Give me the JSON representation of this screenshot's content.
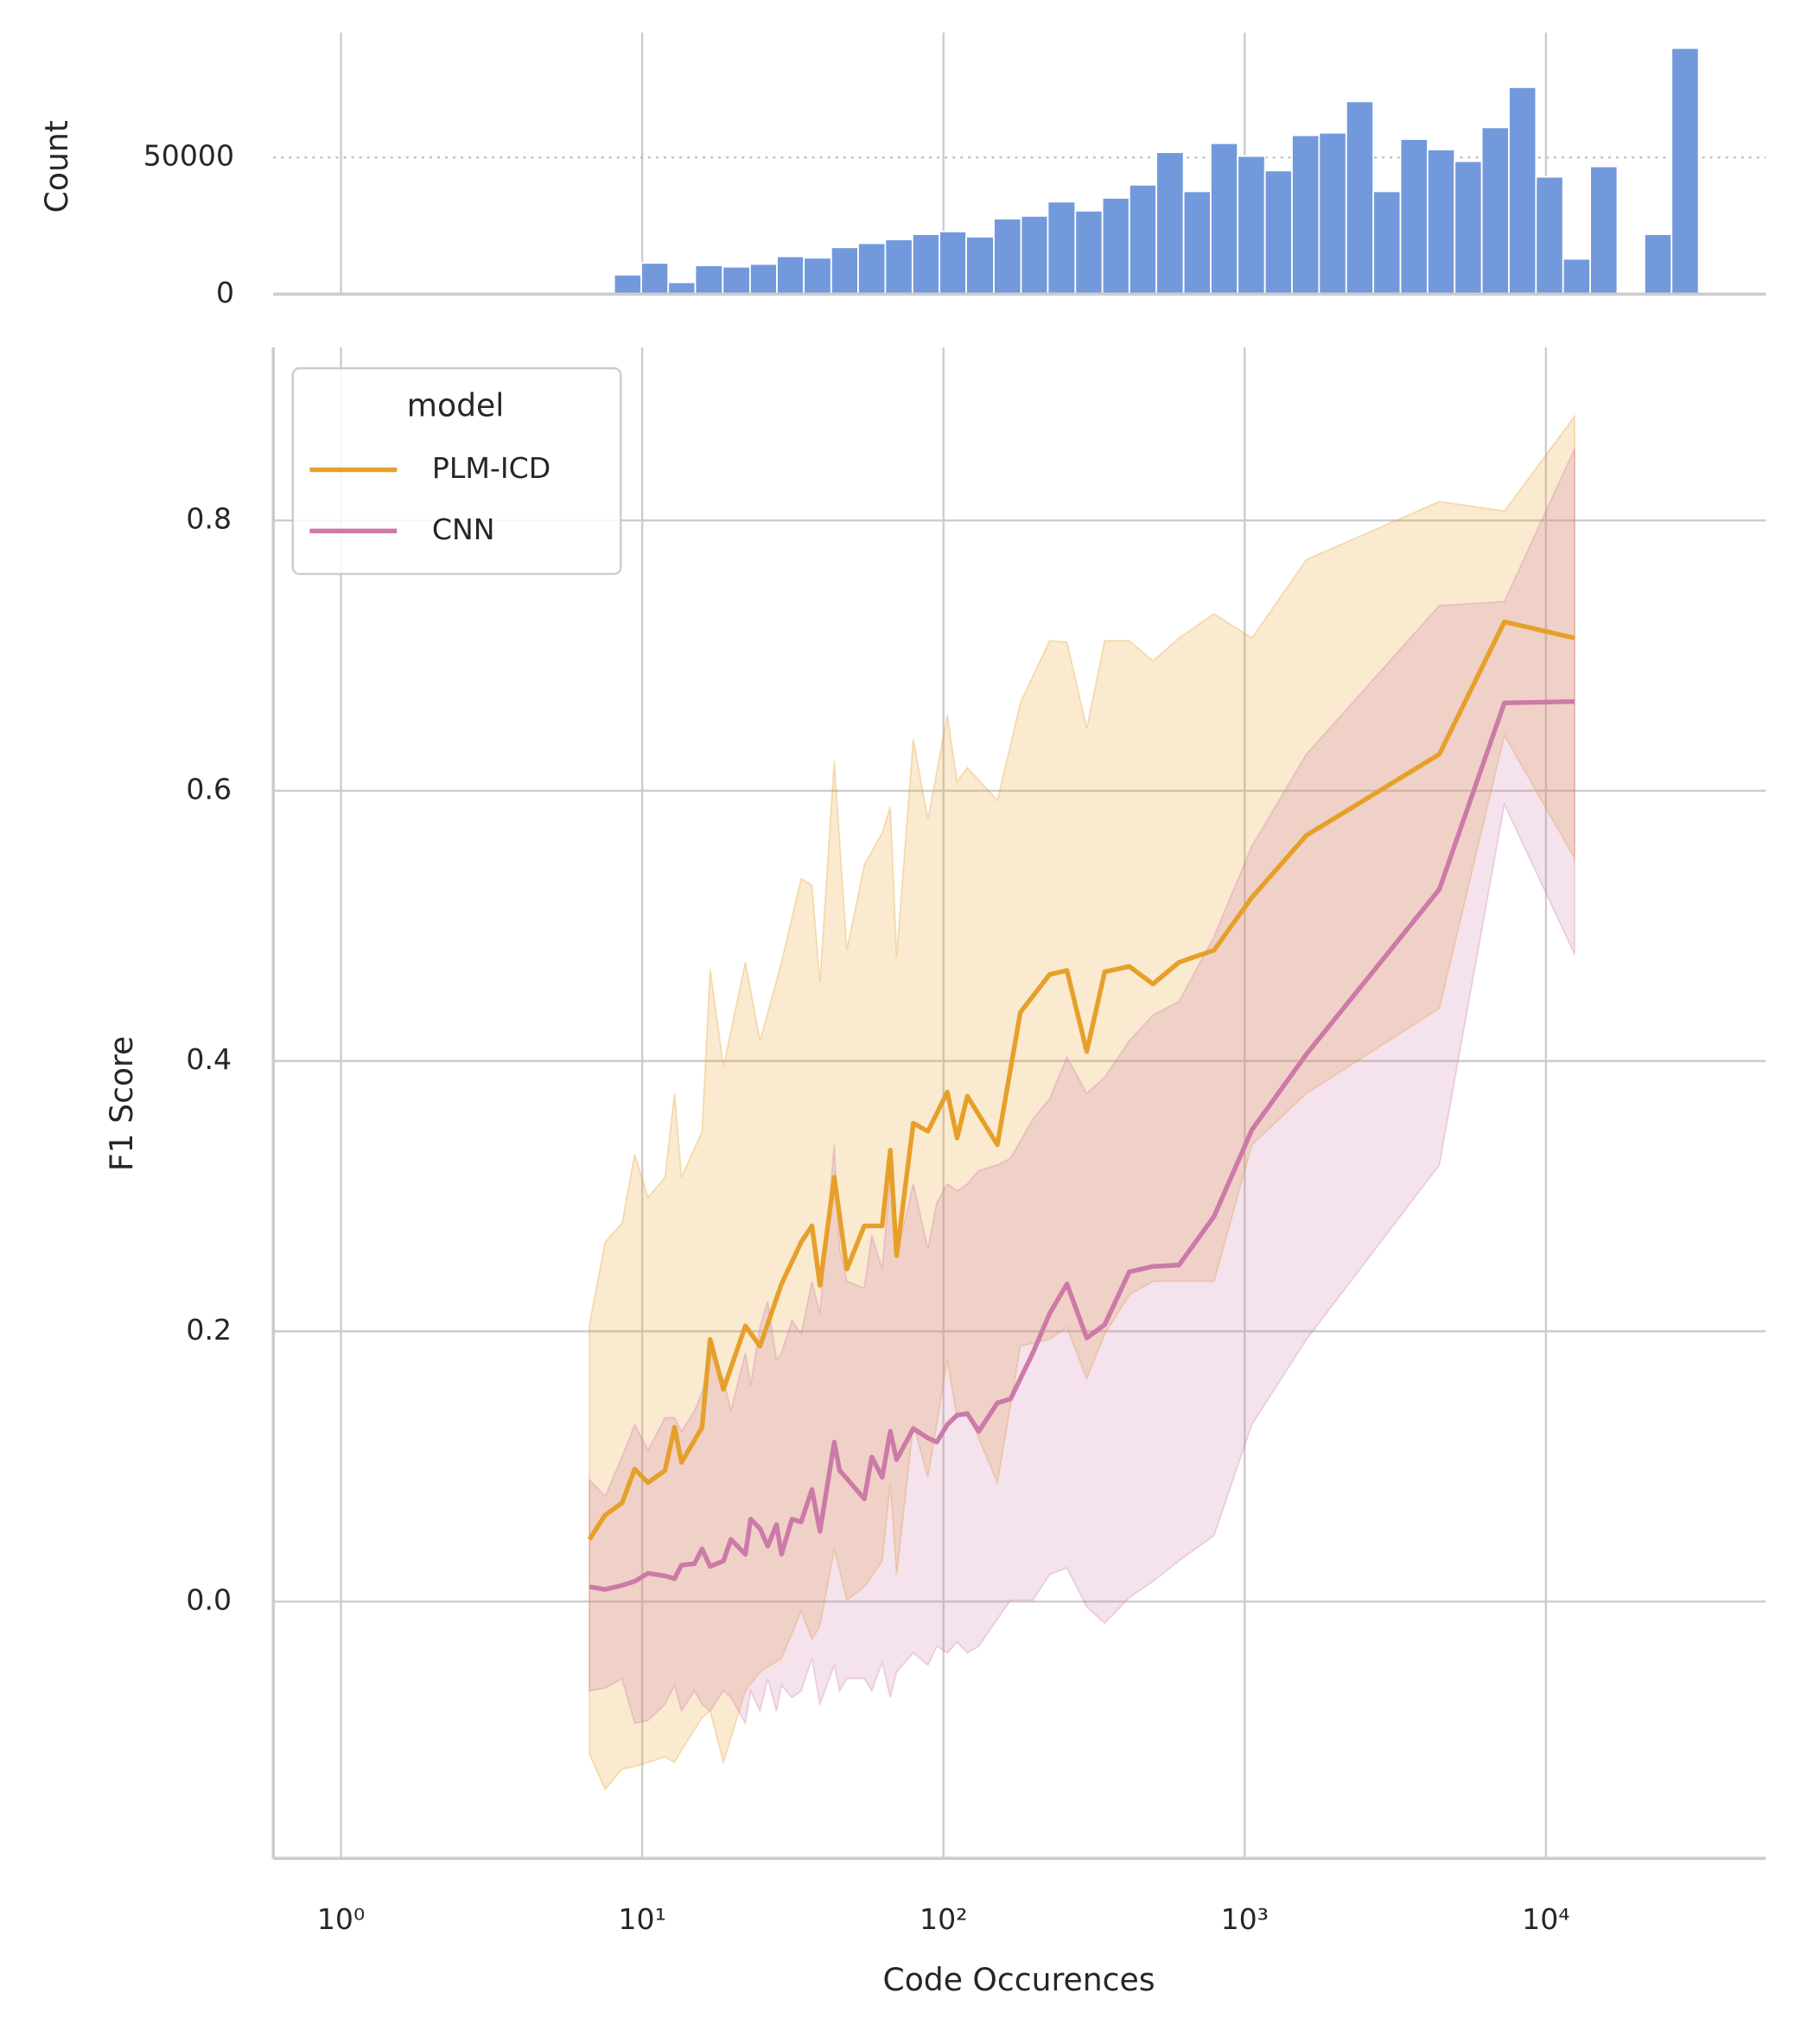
{
  "chart_data": [
    {
      "type": "histogram",
      "ylabel": "Count",
      "color": "#7399dd",
      "log_x": true,
      "grid": true,
      "xlim": [
        0.596,
        53700
      ],
      "xticks": [
        1,
        10,
        100,
        1000,
        10000
      ],
      "ylim": [
        0,
        95700
      ],
      "yticks": [
        0,
        50000
      ],
      "bins": [
        8.07,
        9.93,
        12.2,
        15.0,
        18.5,
        22.8,
        28.0,
        34.4,
        42.4,
        52.1,
        64.1,
        78.9,
        97.0,
        119,
        147,
        181,
        222,
        274,
        337,
        414,
        509,
        627,
        771,
        948,
        1167,
        1435,
        1766,
        2173,
        2673,
        3289,
        4046,
        4977,
        6124,
        7534,
        9268,
        11402,
        14028,
        17258,
        21232,
        26122,
        32137
      ],
      "counts": [
        7100,
        11400,
        4300,
        10500,
        10000,
        11000,
        13800,
        13300,
        17100,
        18600,
        20000,
        21900,
        22900,
        21000,
        27600,
        28600,
        33800,
        30500,
        35200,
        40000,
        51900,
        37600,
        55200,
        50500,
        45200,
        58100,
        59000,
        70500,
        37600,
        56700,
        52900,
        48600,
        61000,
        75700,
        42900,
        12900,
        46700,
        0,
        21900,
        90000
      ]
    },
    {
      "type": "line",
      "xlabel": "Code Occurences",
      "ylabel": "F1 Score",
      "log_x": true,
      "grid": true,
      "legend_title": "model",
      "legend_position": "upper left",
      "xlim": [
        0.596,
        53700
      ],
      "xticks": [
        {
          "value": 1,
          "label": "10⁰"
        },
        {
          "value": 10,
          "label": "10¹"
        },
        {
          "value": 100,
          "label": "10²"
        },
        {
          "value": 1000,
          "label": "10³"
        },
        {
          "value": 10000,
          "label": "10⁴"
        }
      ],
      "ylim": [
        -0.19,
        0.928
      ],
      "yticks": [
        {
          "value": 0,
          "label": "0.0"
        },
        0.2,
        0.4,
        0.6,
        0.8
      ],
      "series": [
        {
          "name": "PLM-ICD",
          "color": "#e6a02a",
          "x": [
            6.68,
            7.53,
            8.57,
            9.44,
            10.45,
            11.9,
            12.8,
            13.5,
            15.8,
            16.8,
            18.6,
            22.0,
            24.6,
            29.0,
            33.7,
            36.6,
            38.9,
            43.4,
            47.8,
            54.6,
            62.6,
            66.6,
            69.9,
            79.4,
            88.8,
            103,
            111,
            120,
            151,
            180,
            225,
            257,
            299,
            343,
            414,
            496,
            605,
            791,
            1056,
            1603,
            4426,
            7278,
            12450
          ],
          "values": [
            0.046,
            0.064,
            0.073,
            0.098,
            0.088,
            0.097,
            0.129,
            0.103,
            0.129,
            0.194,
            0.157,
            0.204,
            0.189,
            0.235,
            0.266,
            0.278,
            0.234,
            0.314,
            0.246,
            0.278,
            0.278,
            0.334,
            0.256,
            0.354,
            0.348,
            0.377,
            0.343,
            0.374,
            0.338,
            0.436,
            0.464,
            0.467,
            0.407,
            0.466,
            0.47,
            0.457,
            0.473,
            0.482,
            0.521,
            0.567,
            0.627,
            0.725,
            0.713
          ],
          "upper": [
            0.205,
            0.266,
            0.28,
            0.331,
            0.299,
            0.314,
            0.376,
            0.314,
            0.348,
            0.468,
            0.396,
            0.473,
            0.415,
            0.473,
            0.535,
            0.53,
            0.458,
            0.622,
            0.482,
            0.545,
            0.569,
            0.588,
            0.477,
            0.638,
            0.579,
            0.656,
            0.607,
            0.617,
            0.593,
            0.665,
            0.711,
            0.71,
            0.646,
            0.711,
            0.711,
            0.696,
            0.713,
            0.731,
            0.713,
            0.771,
            0.814,
            0.807,
            0.877
          ],
          "lower": [
            -0.113,
            -0.139,
            -0.124,
            -0.122,
            -0.119,
            -0.115,
            -0.119,
            -0.11,
            -0.086,
            -0.081,
            -0.119,
            -0.066,
            -0.052,
            -0.042,
            -0.007,
            -0.028,
            -0.018,
            0.039,
            0.001,
            0.011,
            0.03,
            0.088,
            0.02,
            0.131,
            0.092,
            0.179,
            0.136,
            0.141,
            0.088,
            0.189,
            0.194,
            0.203,
            0.165,
            0.198,
            0.227,
            0.237,
            0.237,
            0.237,
            0.338,
            0.376,
            0.439,
            0.641,
            0.55
          ]
        },
        {
          "name": "CNN",
          "color": "#cc7aa8",
          "x": [
            6.68,
            7.53,
            8.57,
            9.44,
            10.45,
            11.9,
            12.8,
            13.5,
            14.9,
            15.8,
            16.8,
            18.6,
            19.7,
            22.0,
            22.9,
            24.6,
            26.1,
            27.9,
            29.0,
            31.4,
            33.7,
            36.6,
            38.9,
            43.4,
            45.2,
            47.8,
            54.6,
            57.8,
            62.6,
            66.6,
            69.9,
            79.4,
            88.8,
            95.0,
            103,
            111,
            120,
            131,
            151,
            167,
            198,
            225,
            257,
            299,
            343,
            414,
            496,
            605,
            791,
            1056,
            1603,
            4426,
            7278,
            12450
          ],
          "values": [
            0.011,
            0.009,
            0.012,
            0.015,
            0.021,
            0.019,
            0.017,
            0.027,
            0.028,
            0.039,
            0.026,
            0.03,
            0.046,
            0.035,
            0.061,
            0.054,
            0.041,
            0.057,
            0.035,
            0.061,
            0.059,
            0.083,
            0.052,
            0.118,
            0.097,
            0.091,
            0.076,
            0.107,
            0.092,
            0.126,
            0.105,
            0.128,
            0.121,
            0.118,
            0.131,
            0.138,
            0.139,
            0.126,
            0.147,
            0.15,
            0.184,
            0.213,
            0.235,
            0.195,
            0.205,
            0.244,
            0.248,
            0.249,
            0.285,
            0.349,
            0.405,
            0.527,
            0.665,
            0.666
          ],
          "upper": [
            0.09,
            0.078,
            0.107,
            0.131,
            0.112,
            0.136,
            0.136,
            0.126,
            0.141,
            0.155,
            0.184,
            0.165,
            0.141,
            0.184,
            0.16,
            0.203,
            0.222,
            0.179,
            0.184,
            0.208,
            0.198,
            0.237,
            0.213,
            0.338,
            0.261,
            0.237,
            0.232,
            0.271,
            0.246,
            0.314,
            0.256,
            0.309,
            0.261,
            0.295,
            0.309,
            0.304,
            0.309,
            0.319,
            0.323,
            0.328,
            0.357,
            0.372,
            0.403,
            0.376,
            0.388,
            0.415,
            0.434,
            0.444,
            0.492,
            0.559,
            0.627,
            0.737,
            0.74,
            0.853
          ],
          "lower": [
            -0.066,
            -0.064,
            -0.057,
            -0.09,
            -0.088,
            -0.076,
            -0.062,
            -0.081,
            -0.066,
            -0.076,
            -0.081,
            -0.066,
            -0.071,
            -0.09,
            -0.066,
            -0.081,
            -0.057,
            -0.081,
            -0.062,
            -0.071,
            -0.066,
            -0.042,
            -0.076,
            -0.047,
            -0.066,
            -0.057,
            -0.057,
            -0.066,
            -0.045,
            -0.071,
            -0.052,
            -0.038,
            -0.047,
            -0.033,
            -0.038,
            -0.03,
            -0.038,
            -0.033,
            -0.013,
            0.001,
            0.001,
            0.02,
            0.025,
            -0.004,
            -0.016,
            0.003,
            0.015,
            0.03,
            0.049,
            0.131,
            0.194,
            0.323,
            0.59,
            0.479
          ]
        }
      ]
    }
  ]
}
